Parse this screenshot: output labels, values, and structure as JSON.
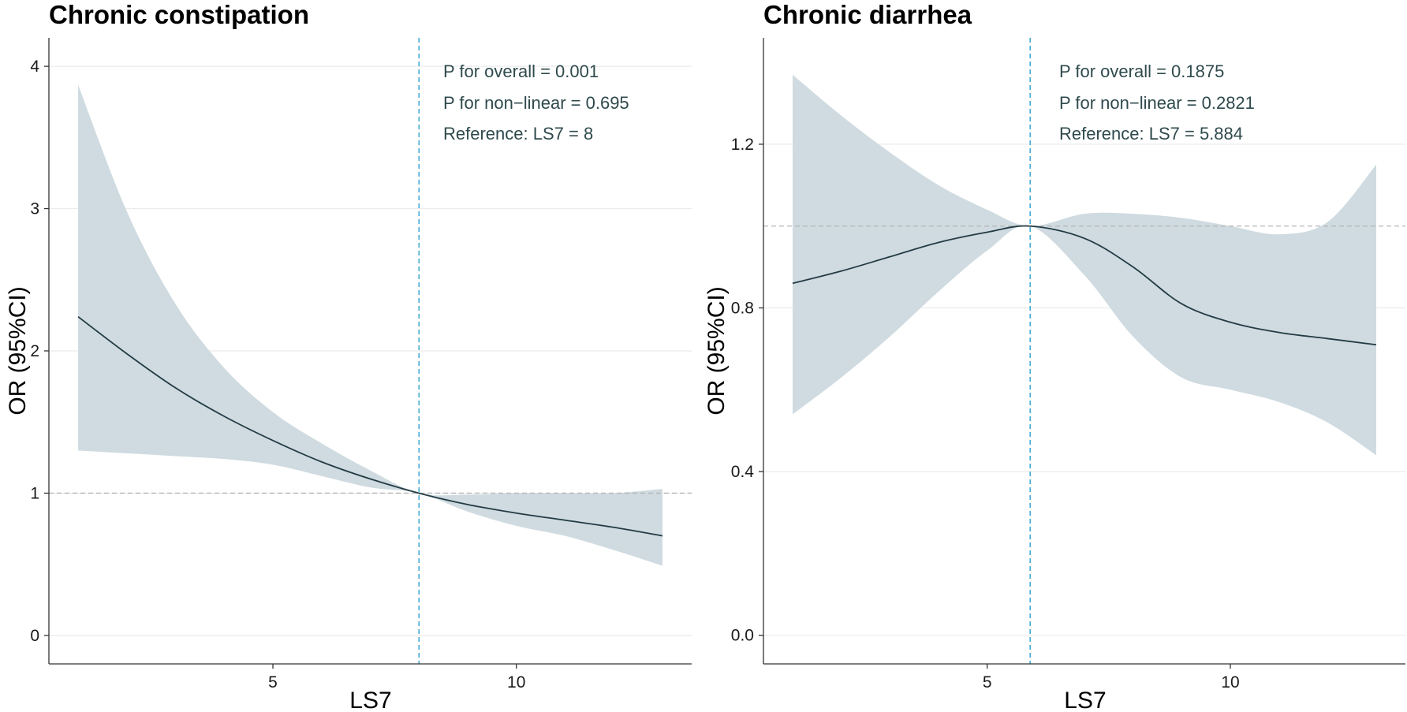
{
  "chart_data": [
    {
      "type": "line",
      "title": "Chronic constipation",
      "xlabel": "LS7",
      "ylabel": "OR (95%CI)",
      "xlim": [
        0.4,
        13.6
      ],
      "ylim": [
        -0.2,
        4.2
      ],
      "x_ticks": [
        5,
        10
      ],
      "y_ticks": [
        0,
        1,
        2,
        3,
        4
      ],
      "y_tick_labels": [
        "0",
        "1",
        "2",
        "3",
        "4"
      ],
      "reference_hline": 1,
      "reference_vline": 8,
      "annotations": [
        "P for overall = 0.001",
        "P for non−linear = 0.695",
        "Reference: LS7 = 8"
      ],
      "series": [
        {
          "name": "OR",
          "x": [
            1,
            2,
            3,
            4,
            5,
            6,
            7,
            8,
            9,
            10,
            11,
            12,
            13
          ],
          "y": [
            2.24,
            1.98,
            1.74,
            1.54,
            1.37,
            1.22,
            1.1,
            1.0,
            0.92,
            0.86,
            0.81,
            0.76,
            0.7
          ],
          "lower": [
            1.3,
            1.28,
            1.26,
            1.24,
            1.2,
            1.12,
            1.04,
            1.0,
            0.87,
            0.77,
            0.7,
            0.6,
            0.49
          ],
          "upper": [
            3.87,
            2.98,
            2.33,
            1.88,
            1.57,
            1.35,
            1.16,
            1.0,
            0.99,
            1.0,
            1.0,
            1.0,
            1.03
          ]
        }
      ]
    },
    {
      "type": "line",
      "title": "Chronic diarrhea",
      "xlabel": "LS7",
      "ylabel": "OR (95%CI)",
      "xlim": [
        0.4,
        13.6
      ],
      "ylim": [
        -0.07,
        1.46
      ],
      "x_ticks": [
        5,
        10
      ],
      "y_ticks": [
        0.0,
        0.4,
        0.8,
        1.2
      ],
      "y_tick_labels": [
        "0.0",
        "0.4",
        "0.8",
        "1.2"
      ],
      "reference_hline": 1,
      "reference_vline": 5.884,
      "annotations": [
        "P for overall = 0.1875",
        "P for non−linear = 0.2821",
        "Reference: LS7 = 5.884"
      ],
      "series": [
        {
          "name": "OR",
          "x": [
            1,
            2,
            3,
            4,
            5,
            5.884,
            7,
            8,
            9,
            10,
            11,
            12,
            13
          ],
          "y": [
            0.86,
            0.89,
            0.925,
            0.96,
            0.985,
            1.0,
            0.97,
            0.9,
            0.81,
            0.765,
            0.74,
            0.725,
            0.71
          ],
          "lower": [
            0.54,
            0.63,
            0.73,
            0.84,
            0.94,
            1.0,
            0.88,
            0.73,
            0.63,
            0.6,
            0.57,
            0.52,
            0.44
          ],
          "upper": [
            1.37,
            1.27,
            1.18,
            1.1,
            1.04,
            1.0,
            1.03,
            1.03,
            1.02,
            1.0,
            0.98,
            1.01,
            1.15
          ]
        }
      ]
    }
  ]
}
